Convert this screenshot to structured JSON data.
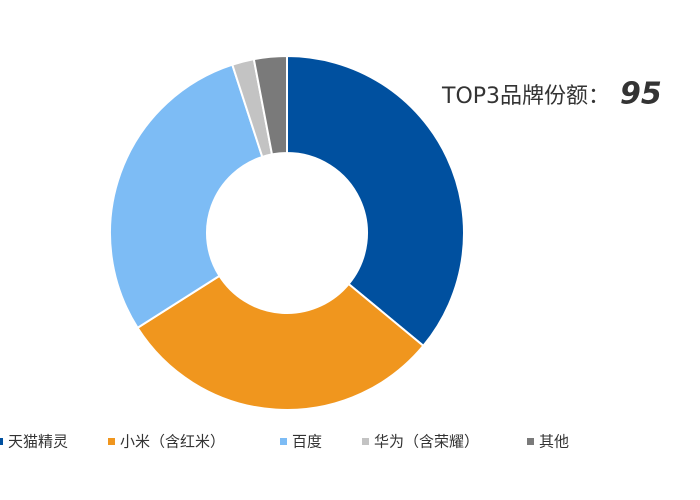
{
  "chart_data": {
    "type": "donut",
    "title": "TOP3品牌份额：",
    "highlight": 95,
    "categories": [
      "天猫精灵",
      "小米（含红米）",
      "百度",
      "华为（含荣耀）",
      "其他"
    ],
    "values": [
      36,
      30,
      29,
      2,
      3
    ],
    "colors": [
      "#00509f",
      "#f0961e",
      "#7dbcf5",
      "#c3c3c3",
      "#7a7a7a"
    ],
    "legend": "bottom"
  }
}
